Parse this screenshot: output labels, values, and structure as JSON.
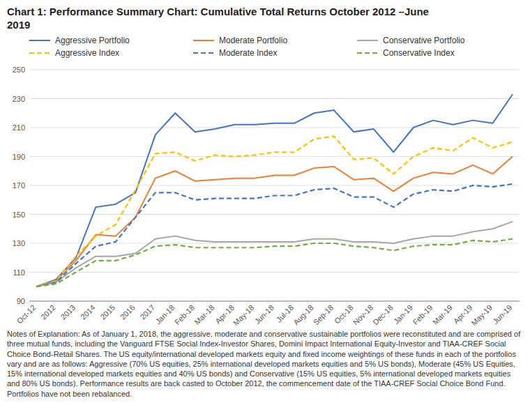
{
  "chart_data": {
    "type": "line",
    "title": "Chart 1:  Performance Summary Chart:  Cumulative Total Returns October 2012 –June\n2019",
    "categories": [
      "Oct-12",
      "2012",
      "2013",
      "2014",
      "2015",
      "2016",
      "2017",
      "Jan-18",
      "Feb-18",
      "Mar-18",
      "Apr-18",
      "May-18",
      "Jun-18",
      "Jul-18",
      "Aug-18",
      "Sep-18",
      "Oct-18",
      "Nov-18",
      "Dec-18",
      "Jan-19",
      "Feb-19",
      "Mar-19",
      "Apr-19",
      "May-19",
      "Jun-19"
    ],
    "series": [
      {
        "name": "Aggressive Portfolio",
        "color": "#4472C4",
        "line_style": "solid",
        "values": [
          100,
          105,
          120,
          155,
          157,
          165,
          205,
          220,
          207,
          209,
          212,
          212,
          213,
          213,
          220,
          222,
          207,
          209,
          193,
          210,
          215,
          212,
          215,
          213,
          233
        ]
      },
      {
        "name": "Moderate Portfolio",
        "color": "#ED7D31",
        "line_style": "solid",
        "values": [
          100,
          104,
          118,
          136,
          135,
          148,
          175,
          180,
          173,
          174,
          175,
          175,
          177,
          177,
          182,
          183,
          174,
          175,
          166,
          175,
          179,
          178,
          184,
          178,
          190
        ]
      },
      {
        "name": "Conservative Portfolio",
        "color": "#A6A6A6",
        "line_style": "solid",
        "values": [
          100,
          103,
          113,
          121,
          121,
          123,
          133,
          135,
          132,
          131,
          131,
          131,
          131,
          131,
          133,
          133,
          131,
          131,
          130,
          133,
          135,
          135,
          138,
          140,
          145
        ]
      },
      {
        "name": "Aggressive Index",
        "color": "#FFC000",
        "line_style": "dashed",
        "values": [
          100,
          104,
          121,
          135,
          143,
          167,
          192,
          193,
          187,
          191,
          190,
          191,
          193,
          193,
          202,
          204,
          188,
          189,
          178,
          190,
          196,
          194,
          203,
          196,
          200
        ]
      },
      {
        "name": "Moderate Index",
        "color": "#4472C4",
        "line_style": "dashed",
        "values": [
          100,
          103,
          116,
          128,
          131,
          148,
          165,
          165,
          160,
          161,
          161,
          161,
          163,
          163,
          167,
          168,
          162,
          162,
          155,
          164,
          167,
          166,
          170,
          169,
          171
        ]
      },
      {
        "name": "Conservative Index",
        "color": "#70AD47",
        "line_style": "dashed",
        "values": [
          100,
          102,
          110,
          118,
          118,
          122,
          128,
          129,
          127,
          127,
          127,
          127,
          128,
          128,
          130,
          130,
          128,
          127,
          125,
          128,
          129,
          129,
          132,
          131,
          133
        ]
      }
    ],
    "ylim": [
      90,
      250
    ],
    "yticks": [
      90,
      110,
      130,
      150,
      170,
      190,
      210,
      230,
      250
    ],
    "grid": true,
    "legend": "top",
    "annotation": "Notes of Explanation:  As of January 1, 2018, the aggressive, moderate and conservative sustainable portfolios were reconstituted and are comprised of three mutual funds, including the Vanguard FTSE Social Index-Investor Shares, Domini Impact International Equity-Investor and TIAA-CREF Social Choice Bond-Retail Shares. The US equity/international developed markets equity and fixed income weightings of these funds in each of the portfolios vary and are as follows:  Aggressive (70% US equities, 25% international developed markets equities and 5% US bonds), Moderate (45% US Equities, 15% international developed markets equities and 40% US bonds) and Conservative (15% US equities, 5% international developed markets equities and 80% US bonds).  Performance results are back casted to October 2012, the commencement date of the TIAA-CREF Social Choice Bond Fund.  Portfolios have not been rebalanced."
  }
}
